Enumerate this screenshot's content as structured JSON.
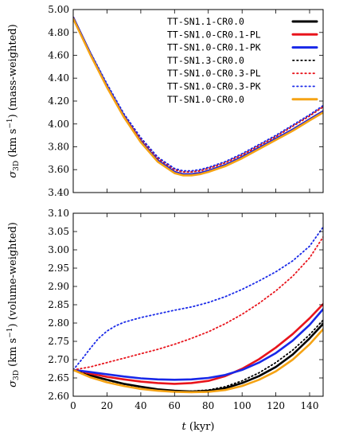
{
  "chart_data": [
    {
      "type": "line",
      "ylabel": "σ3D (km s−1) (mass-weighted)",
      "ylabel_parts": {
        "symbol": "σ",
        "subscript": "3D",
        "unit_open": " (km s",
        "unit_exp": "−1",
        "unit_close": ") (mass-weighted)"
      },
      "xlim": [
        0,
        148
      ],
      "ylim": [
        3.4,
        5.0
      ],
      "xticks": [
        0,
        20,
        40,
        60,
        80,
        100,
        120,
        140
      ],
      "yticks": [
        3.4,
        3.6,
        3.8,
        4.0,
        4.2,
        4.4,
        4.6,
        4.8,
        5.0
      ],
      "ytick_labels": [
        "3.40",
        "3.60",
        "3.80",
        "4.00",
        "4.20",
        "4.40",
        "4.60",
        "4.80",
        "5.00"
      ],
      "grid": false,
      "legend": "top-right",
      "series": [
        {
          "name": "TT-SN1.1-CR0.0",
          "color": "#000000",
          "style": "solid",
          "x": [
            0,
            10,
            20,
            30,
            40,
            50,
            60,
            65,
            70,
            75,
            80,
            90,
            100,
            110,
            120,
            130,
            140,
            148
          ],
          "y": [
            4.93,
            4.62,
            4.33,
            4.07,
            3.85,
            3.68,
            3.58,
            3.56,
            3.56,
            3.57,
            3.59,
            3.64,
            3.71,
            3.79,
            3.87,
            3.95,
            4.04,
            4.11
          ]
        },
        {
          "name": "TT-SN1.0-CR0.1-PL",
          "color": "#e8141c",
          "style": "solid",
          "x": [
            0,
            10,
            20,
            30,
            40,
            50,
            60,
            65,
            70,
            75,
            80,
            90,
            100,
            110,
            120,
            130,
            140,
            148
          ],
          "y": [
            4.93,
            4.62,
            4.33,
            4.07,
            3.85,
            3.68,
            3.58,
            3.56,
            3.56,
            3.57,
            3.59,
            3.64,
            3.71,
            3.79,
            3.87,
            3.95,
            4.04,
            4.11
          ]
        },
        {
          "name": "TT-SN1.0-CR0.1-PK",
          "color": "#1828e8",
          "style": "solid",
          "x": [
            0,
            10,
            20,
            30,
            40,
            50,
            60,
            65,
            70,
            75,
            80,
            90,
            100,
            110,
            120,
            130,
            140,
            148
          ],
          "y": [
            4.93,
            4.62,
            4.33,
            4.07,
            3.85,
            3.68,
            3.58,
            3.56,
            3.56,
            3.57,
            3.59,
            3.64,
            3.71,
            3.79,
            3.87,
            3.95,
            4.04,
            4.11
          ]
        },
        {
          "name": "TT-SN1.3-CR0.0",
          "color": "#000000",
          "style": "dotted",
          "x": [
            0,
            10,
            20,
            30,
            40,
            50,
            60,
            65,
            70,
            75,
            80,
            90,
            100,
            110,
            120,
            130,
            140,
            148
          ],
          "y": [
            4.93,
            4.62,
            4.34,
            4.08,
            3.87,
            3.7,
            3.6,
            3.58,
            3.58,
            3.59,
            3.61,
            3.66,
            3.73,
            3.81,
            3.89,
            3.98,
            4.07,
            4.15
          ]
        },
        {
          "name": "TT-SN1.0-CR0.3-PL",
          "color": "#e8141c",
          "style": "dotted",
          "x": [
            0,
            10,
            20,
            30,
            40,
            50,
            60,
            65,
            70,
            75,
            80,
            90,
            100,
            110,
            120,
            130,
            140,
            148
          ],
          "y": [
            4.93,
            4.62,
            4.34,
            4.08,
            3.87,
            3.7,
            3.6,
            3.58,
            3.58,
            3.59,
            3.61,
            3.66,
            3.73,
            3.81,
            3.89,
            3.98,
            4.07,
            4.15
          ]
        },
        {
          "name": "TT-SN1.0-CR0.3-PK",
          "color": "#1828e8",
          "style": "dotted",
          "x": [
            0,
            10,
            20,
            30,
            40,
            50,
            60,
            65,
            70,
            75,
            80,
            90,
            100,
            110,
            120,
            130,
            140,
            148
          ],
          "y": [
            4.93,
            4.63,
            4.35,
            4.09,
            3.88,
            3.71,
            3.61,
            3.59,
            3.59,
            3.6,
            3.62,
            3.67,
            3.74,
            3.82,
            3.9,
            3.99,
            4.08,
            4.16
          ]
        },
        {
          "name": "TT-SN1.0-CR0.0",
          "color": "#f5a314",
          "style": "solid",
          "x": [
            0,
            10,
            20,
            30,
            40,
            50,
            60,
            65,
            70,
            75,
            80,
            90,
            100,
            110,
            120,
            130,
            140,
            148
          ],
          "y": [
            4.92,
            4.61,
            4.32,
            4.06,
            3.84,
            3.67,
            3.57,
            3.55,
            3.55,
            3.56,
            3.58,
            3.63,
            3.7,
            3.78,
            3.86,
            3.94,
            4.03,
            4.1
          ]
        }
      ]
    },
    {
      "type": "line",
      "xlabel": "t (kyr)",
      "xlabel_parts": {
        "symbol": "t",
        "unit": " (kyr)"
      },
      "ylabel": "σ3D (km s−1) (volume-weighted)",
      "ylabel_parts": {
        "symbol": "σ",
        "subscript": "3D",
        "unit_open": " (km s",
        "unit_exp": "−1",
        "unit_close": ") (volume-weighted)"
      },
      "xlim": [
        0,
        148
      ],
      "ylim": [
        2.6,
        3.1
      ],
      "xticks": [
        0,
        20,
        40,
        60,
        80,
        100,
        120,
        140
      ],
      "xtick_labels": [
        "0",
        "20",
        "40",
        "60",
        "80",
        "100",
        "120",
        "140"
      ],
      "yticks": [
        2.6,
        2.65,
        2.7,
        2.75,
        2.8,
        2.85,
        2.9,
        2.95,
        3.0,
        3.05,
        3.1
      ],
      "ytick_labels": [
        "2.60",
        "2.65",
        "2.70",
        "2.75",
        "2.80",
        "2.85",
        "2.90",
        "2.95",
        "3.00",
        "3.05",
        "3.10"
      ],
      "grid": false,
      "series": [
        {
          "name": "TT-SN1.1-CR0.0",
          "color": "#000000",
          "style": "solid",
          "x": [
            0,
            10,
            20,
            30,
            40,
            50,
            60,
            70,
            80,
            90,
            100,
            110,
            120,
            130,
            140,
            148
          ],
          "y": [
            2.672,
            2.657,
            2.645,
            2.634,
            2.626,
            2.619,
            2.615,
            2.613,
            2.615,
            2.622,
            2.636,
            2.655,
            2.68,
            2.714,
            2.758,
            2.798
          ]
        },
        {
          "name": "TT-SN1.0-CR0.1-PL",
          "color": "#e8141c",
          "style": "solid",
          "x": [
            0,
            10,
            20,
            30,
            40,
            50,
            60,
            70,
            80,
            90,
            100,
            110,
            120,
            130,
            140,
            148
          ],
          "y": [
            2.672,
            2.662,
            2.653,
            2.646,
            2.64,
            2.636,
            2.634,
            2.636,
            2.642,
            2.655,
            2.675,
            2.701,
            2.733,
            2.77,
            2.813,
            2.852
          ]
        },
        {
          "name": "TT-SN1.0-CR0.1-PK",
          "color": "#1828e8",
          "style": "solid",
          "x": [
            0,
            10,
            20,
            30,
            40,
            50,
            60,
            70,
            80,
            90,
            100,
            110,
            120,
            130,
            140,
            148
          ],
          "y": [
            2.672,
            2.666,
            2.66,
            2.654,
            2.649,
            2.646,
            2.645,
            2.646,
            2.65,
            2.658,
            2.672,
            2.692,
            2.718,
            2.752,
            2.795,
            2.838
          ]
        },
        {
          "name": "TT-SN1.3-CR0.0",
          "color": "#000000",
          "style": "dotted",
          "x": [
            0,
            10,
            20,
            30,
            40,
            50,
            60,
            70,
            80,
            90,
            100,
            110,
            120,
            130,
            140,
            148
          ],
          "y": [
            2.672,
            2.657,
            2.644,
            2.633,
            2.625,
            2.619,
            2.615,
            2.614,
            2.617,
            2.626,
            2.642,
            2.664,
            2.692,
            2.726,
            2.768,
            2.808
          ]
        },
        {
          "name": "TT-SN1.0-CR0.3-PL",
          "color": "#e8141c",
          "style": "dotted",
          "x": [
            0,
            10,
            20,
            30,
            40,
            50,
            60,
            70,
            80,
            90,
            100,
            110,
            120,
            130,
            140,
            148
          ],
          "y": [
            2.672,
            2.68,
            2.692,
            2.704,
            2.716,
            2.728,
            2.742,
            2.758,
            2.776,
            2.798,
            2.824,
            2.854,
            2.888,
            2.928,
            2.978,
            3.035
          ]
        },
        {
          "name": "TT-SN1.0-CR0.3-PK",
          "color": "#1828e8",
          "style": "dotted",
          "x": [
            0,
            5,
            10,
            15,
            20,
            25,
            30,
            40,
            50,
            60,
            70,
            80,
            90,
            100,
            110,
            120,
            130,
            140,
            148
          ],
          "y": [
            2.672,
            2.7,
            2.73,
            2.758,
            2.778,
            2.792,
            2.802,
            2.815,
            2.825,
            2.835,
            2.844,
            2.856,
            2.872,
            2.892,
            2.915,
            2.94,
            2.97,
            3.01,
            3.062
          ]
        },
        {
          "name": "TT-SN1.0-CR0.0",
          "color": "#f5a314",
          "style": "solid",
          "x": [
            0,
            10,
            20,
            30,
            40,
            50,
            60,
            70,
            80,
            90,
            100,
            110,
            120,
            130,
            140,
            148
          ],
          "y": [
            2.672,
            2.652,
            2.638,
            2.628,
            2.62,
            2.615,
            2.612,
            2.611,
            2.612,
            2.617,
            2.628,
            2.645,
            2.668,
            2.7,
            2.742,
            2.783
          ]
        }
      ]
    }
  ]
}
